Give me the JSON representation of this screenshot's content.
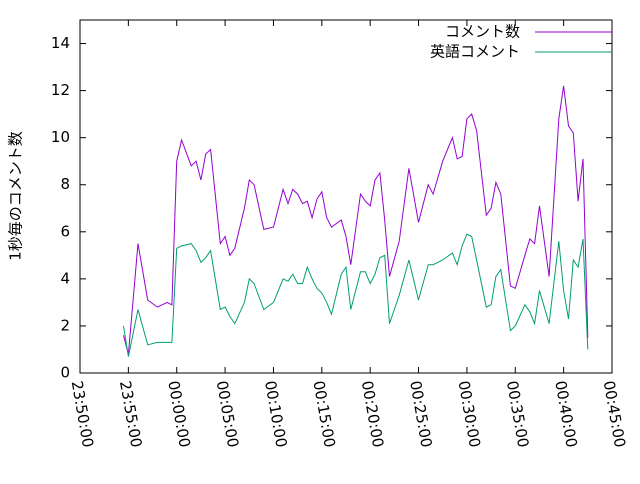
{
  "chart_data": {
    "type": "line",
    "y_label": "1秒毎のコメント数",
    "x": [
      "23:54:30",
      "23:55:00",
      "23:56:00",
      "23:57:00",
      "23:58:00",
      "23:59:00",
      "23:59:30",
      "00:00:00",
      "00:00:30",
      "00:01:30",
      "00:02:00",
      "00:02:30",
      "00:03:00",
      "00:03:30",
      "00:04:30",
      "00:05:00",
      "00:05:30",
      "00:06:00",
      "00:07:00",
      "00:07:30",
      "00:08:00",
      "00:09:00",
      "00:10:00",
      "00:11:00",
      "00:11:30",
      "00:12:00",
      "00:12:30",
      "00:13:00",
      "00:13:30",
      "00:14:00",
      "00:14:30",
      "00:15:00",
      "00:15:30",
      "00:16:00",
      "00:17:00",
      "00:17:30",
      "00:18:00",
      "00:19:00",
      "00:19:30",
      "00:20:00",
      "00:20:30",
      "00:21:00",
      "00:21:30",
      "00:22:00",
      "00:23:00",
      "00:24:00",
      "00:25:00",
      "00:26:00",
      "00:26:30",
      "00:27:30",
      "00:28:30",
      "00:29:00",
      "00:29:30",
      "00:30:00",
      "00:30:30",
      "00:31:00",
      "00:32:00",
      "00:32:30",
      "00:33:00",
      "00:33:30",
      "00:34:30",
      "00:35:00",
      "00:36:00",
      "00:36:30",
      "00:37:00",
      "00:37:30",
      "00:38:30",
      "00:39:30",
      "00:40:00",
      "00:40:30",
      "00:41:00",
      "00:41:30",
      "00:42:00",
      "00:42:30"
    ],
    "series": [
      {
        "name": "コメント数",
        "color": "#9400d3",
        "values": [
          1.6,
          0.8,
          5.5,
          3.1,
          2.8,
          3.0,
          2.9,
          9.0,
          9.9,
          8.8,
          9.0,
          8.2,
          9.3,
          9.5,
          5.5,
          5.8,
          5.0,
          5.3,
          7.0,
          8.2,
          8.0,
          6.1,
          6.2,
          7.8,
          7.2,
          7.8,
          7.6,
          7.2,
          7.3,
          6.6,
          7.4,
          7.7,
          6.6,
          6.2,
          6.5,
          5.8,
          4.6,
          7.6,
          7.3,
          7.1,
          8.2,
          8.5,
          6.5,
          4.1,
          5.6,
          8.7,
          6.4,
          8.0,
          7.6,
          9.0,
          10.0,
          9.1,
          9.2,
          10.8,
          11.0,
          10.3,
          6.7,
          7.0,
          8.1,
          7.6,
          3.7,
          3.6,
          5.0,
          5.7,
          5.5,
          7.1,
          4.1,
          10.8,
          12.2,
          10.5,
          10.2,
          7.3,
          9.1,
          1.5
        ]
      },
      {
        "name": "英語コメント",
        "color": "#009e73",
        "values": [
          2.0,
          0.7,
          2.7,
          1.2,
          1.3,
          1.3,
          1.3,
          5.3,
          5.4,
          5.5,
          5.2,
          4.7,
          4.9,
          5.2,
          2.7,
          2.8,
          2.4,
          2.1,
          3.0,
          4.0,
          3.8,
          2.7,
          3.0,
          4.0,
          3.9,
          4.2,
          3.8,
          3.8,
          4.5,
          4.0,
          3.6,
          3.4,
          3.0,
          2.5,
          4.2,
          4.5,
          2.7,
          4.3,
          4.3,
          3.8,
          4.2,
          4.9,
          5.0,
          2.1,
          3.3,
          4.8,
          3.1,
          4.6,
          4.6,
          4.8,
          5.1,
          4.6,
          5.4,
          5.9,
          5.8,
          4.8,
          2.8,
          2.9,
          4.1,
          4.4,
          1.8,
          2.0,
          2.9,
          2.6,
          2.1,
          3.5,
          2.1,
          5.6,
          3.5,
          2.3,
          4.8,
          4.5,
          5.7,
          1.0
        ]
      }
    ],
    "xlim": [
      "23:50:00",
      "00:45:00"
    ],
    "xticks": [
      "23:50:00",
      "23:55:00",
      "00:00:00",
      "00:05:00",
      "00:10:00",
      "00:15:00",
      "00:20:00",
      "00:25:00",
      "00:30:00",
      "00:35:00",
      "00:40:00",
      "00:45:00"
    ],
    "ylim": [
      0,
      15
    ],
    "yticks": [
      0,
      2,
      4,
      6,
      8,
      10,
      12,
      14
    ],
    "legend": "top-right"
  }
}
